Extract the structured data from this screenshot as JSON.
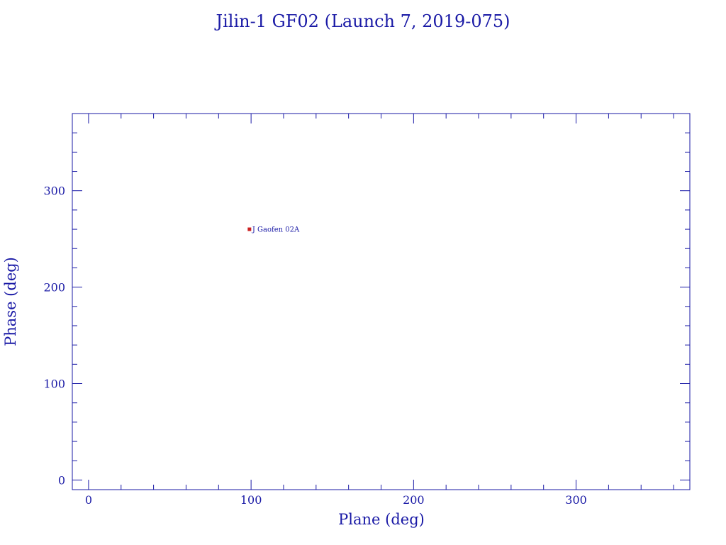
{
  "chart_data": {
    "type": "scatter",
    "title": "Jilin-1 GF02 (Launch 7, 2019-075)",
    "xlabel": "Plane (deg)",
    "ylabel": "Phase (deg)",
    "xlim": [
      -10,
      370
    ],
    "ylim": [
      -10,
      380
    ],
    "x_ticks": [
      0,
      100,
      200,
      300
    ],
    "y_ticks": [
      0,
      100,
      200,
      300
    ],
    "x_minor_step": 20,
    "y_minor_step": 20,
    "grid": false,
    "points": [
      {
        "x": 99,
        "y": 260,
        "label": "J Gaofen 02A",
        "color": "#cc2222"
      }
    ]
  },
  "colors": {
    "axis": "#1a1aa6",
    "point": "#cc2222"
  }
}
